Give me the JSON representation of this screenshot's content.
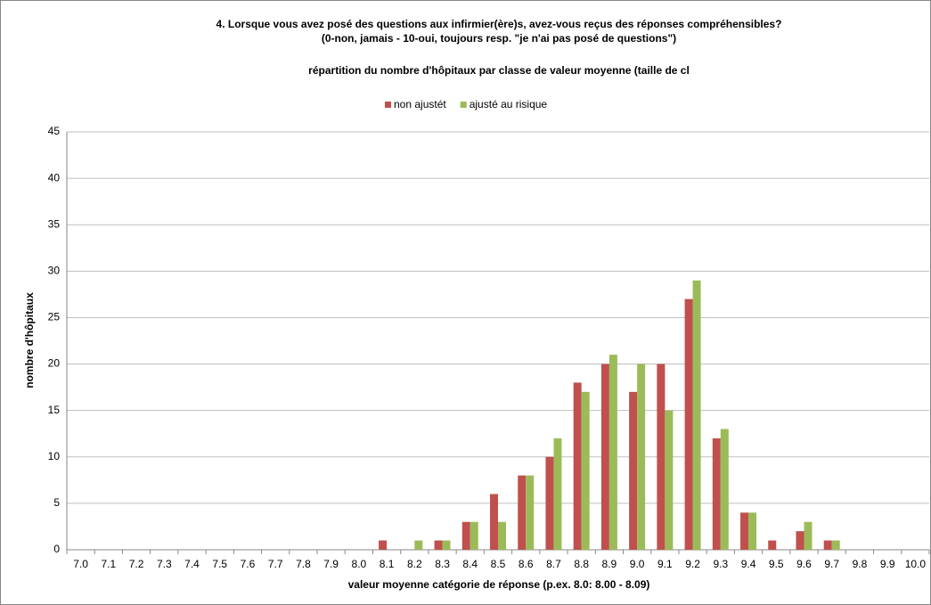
{
  "chart_data": {
    "type": "bar",
    "title": [
      "4. Lorsque vous avez posé des questions aux infirmier(ère)s, avez-vous reçus des réponses compréhensibles?",
      "(0-non, jamais - 10-oui, toujours resp. \"je n'ai pas posé de questions\")"
    ],
    "subtitle": "répartition du nombre d'hôpitaux par classe de valeur moyenne (taille de cl",
    "x_label": "valeur moyenne catégorie de réponse (p.ex. 8.0: 8.00 - 8.09)",
    "y_label": "nombre d'hôpitaux",
    "categories": [
      "7.0",
      "7.1",
      "7.2",
      "7.3",
      "7.4",
      "7.5",
      "7.6",
      "7.7",
      "7.8",
      "7.9",
      "8.0",
      "8.1",
      "8.2",
      "8.3",
      "8.4",
      "8.5",
      "8.6",
      "8.7",
      "8.8",
      "8.9",
      "9.0",
      "9.1",
      "9.2",
      "9.3",
      "9.4",
      "9.5",
      "9.6",
      "9.7",
      "9.8",
      "9.9",
      "10.0"
    ],
    "series": [
      {
        "name": "non ajustét",
        "color": "#c0504d",
        "values": [
          0,
          0,
          0,
          0,
          0,
          0,
          0,
          0,
          0,
          0,
          0,
          1,
          0,
          1,
          3,
          6,
          8,
          10,
          18,
          20,
          17,
          20,
          27,
          12,
          4,
          1,
          2,
          1,
          0,
          0,
          0
        ]
      },
      {
        "name": "ajusté au risique",
        "color": "#9bbb59",
        "values": [
          0,
          0,
          0,
          0,
          0,
          0,
          0,
          0,
          0,
          0,
          0,
          0,
          1,
          1,
          3,
          3,
          8,
          12,
          17,
          21,
          20,
          15,
          29,
          13,
          4,
          0,
          3,
          1,
          0,
          0,
          0
        ]
      }
    ],
    "ylim": [
      0,
      45
    ],
    "yticks": [
      0,
      5,
      10,
      15,
      20,
      25,
      30,
      35,
      40,
      45
    ],
    "grid": true,
    "legend": "top"
  }
}
